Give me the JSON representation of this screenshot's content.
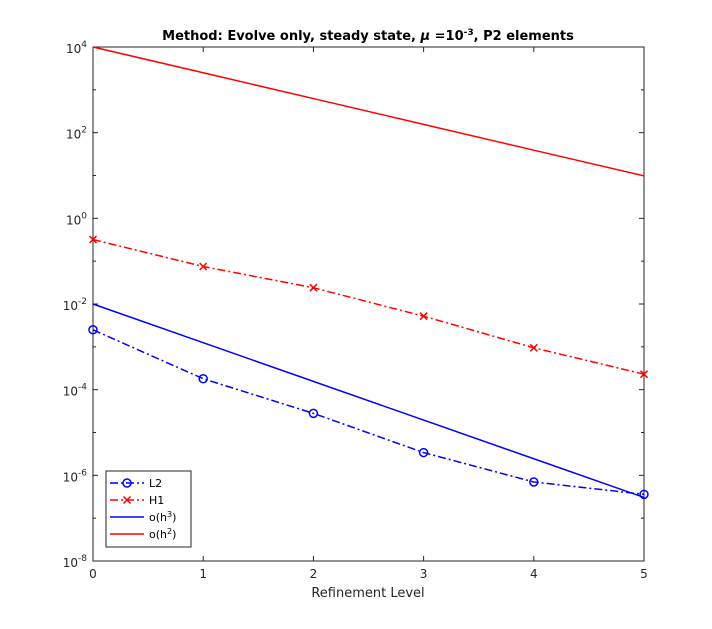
{
  "chart_data": {
    "type": "line",
    "title": "Method: Evolve only, steady state, μ =10⁻³, P2 elements",
    "title_parts": {
      "prefix": "Method: Evolve only, steady state, ",
      "mu": "μ",
      "eq": " =10",
      "exp": "-3",
      "suffix": ", P2 elements"
    },
    "xlabel": "Refinement Level",
    "ylabel": "",
    "xlim": [
      0,
      5
    ],
    "ylim_log10": [
      -8,
      4
    ],
    "yscale": "log",
    "x_ticks": [
      0,
      1,
      2,
      3,
      4,
      5
    ],
    "y_tick_exponents": [
      -8,
      -6,
      -4,
      -2,
      0,
      2,
      4
    ],
    "y_tick_base": "10",
    "x": [
      0,
      1,
      2,
      3,
      4,
      5
    ],
    "series": [
      {
        "name": "L2",
        "label_main": "L2",
        "label_sup": "",
        "color": "#0000ff",
        "dash": "8,3,2,3",
        "marker": "circle",
        "values": [
          0.0025,
          0.00018,
          2.8e-05,
          3.4e-06,
          7e-07,
          3.6e-07
        ]
      },
      {
        "name": "H1",
        "label_main": "H1",
        "label_sup": "",
        "color": "#ff0000",
        "dash": "8,3,2,3",
        "marker": "x",
        "values": [
          0.32,
          0.075,
          0.024,
          0.0052,
          0.00095,
          0.00023
        ]
      },
      {
        "name": "o(h^3)",
        "label_main": "o(h",
        "label_sup": "3",
        "label_end": ")",
        "color": "#0000ff",
        "dash": "",
        "marker": "none",
        "values": [
          0.01,
          0.00125,
          0.000156,
          1.95e-05,
          2.44e-06,
          3.05e-07
        ]
      },
      {
        "name": "o(h^2)",
        "label_main": "o(h",
        "label_sup": "2",
        "label_end": ")",
        "color": "#ff0000",
        "dash": "",
        "marker": "none",
        "values": [
          10000,
          2500,
          625,
          156,
          39,
          9.8
        ]
      }
    ],
    "legend": "bottom-left",
    "grid": false
  }
}
